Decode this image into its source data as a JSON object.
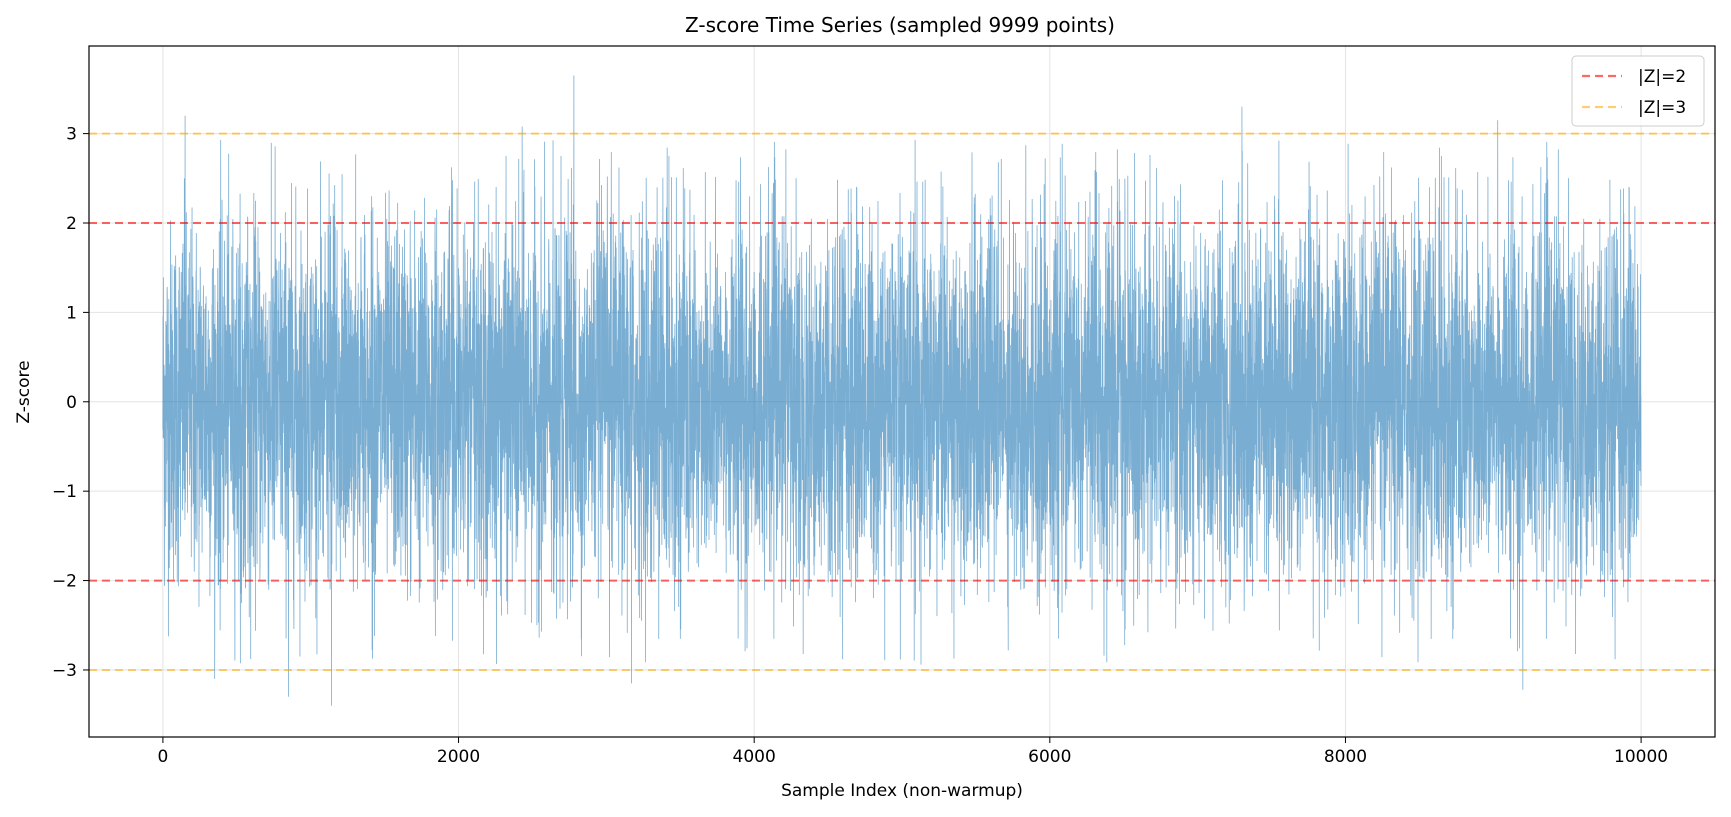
{
  "chart_data": {
    "type": "line",
    "title": "Z-score Time Series (sampled 9999 points)",
    "xlabel": "Sample Index (non-warmup)",
    "ylabel": "Z-score",
    "xlim": [
      -500,
      10500
    ],
    "ylim": [
      -3.75,
      3.98
    ],
    "xticks": [
      0,
      2000,
      4000,
      6000,
      8000,
      10000
    ],
    "xtick_labels": [
      "0",
      "2000",
      "4000",
      "6000",
      "8000",
      "10000"
    ],
    "yticks": [
      -3,
      -2,
      -1,
      0,
      1,
      2,
      3
    ],
    "ytick_labels": [
      "−3",
      "−2",
      "−1",
      "0",
      "1",
      "2",
      "3"
    ],
    "grid": true,
    "legend_position": "top-right",
    "series": [
      {
        "kind": "noise",
        "x_start": 0,
        "x_end": 9999,
        "n_points": 9999,
        "mean": 0.0,
        "std": 1.0,
        "color": "#1f77b4",
        "notable_peaks": [
          {
            "x": 150,
            "y": 3.2
          },
          {
            "x": 2780,
            "y": 3.65
          },
          {
            "x": 2430,
            "y": 3.08
          },
          {
            "x": 7300,
            "y": 3.3
          },
          {
            "x": 9030,
            "y": 3.15
          },
          {
            "x": 1140,
            "y": -3.4
          },
          {
            "x": 850,
            "y": -3.3
          },
          {
            "x": 9200,
            "y": -3.22
          },
          {
            "x": 350,
            "y": -3.1
          },
          {
            "x": 3170,
            "y": -3.15
          }
        ]
      }
    ],
    "reference_lines": [
      {
        "name": "|Z|=2",
        "values": [
          2,
          -2
        ],
        "color": "#ff0000",
        "style": "dashed"
      },
      {
        "name": "|Z|=3",
        "values": [
          3,
          -3
        ],
        "color": "#ffa500",
        "style": "dashed"
      }
    ]
  }
}
